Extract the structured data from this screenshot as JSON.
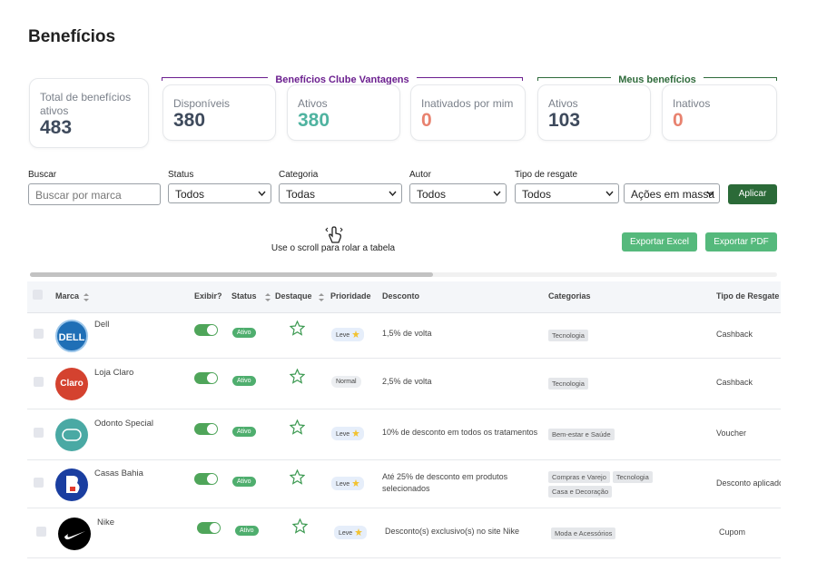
{
  "header": {
    "title": "Benefícios"
  },
  "stats": {
    "total": {
      "label": "Total de benefícios ativos",
      "value": 483
    },
    "groups": [
      {
        "title": "Benefícios Clube Vantagens",
        "cards": [
          {
            "label": "Disponíveis",
            "value": 380
          },
          {
            "label": "Ativos",
            "value": 380
          },
          {
            "label": "Inativados por mim",
            "value": 0
          }
        ]
      },
      {
        "title": "Meus benefícios",
        "cards": [
          {
            "label": "Ativos",
            "value": 103
          },
          {
            "label": "Inativos",
            "value": 0
          }
        ]
      }
    ]
  },
  "filters": [
    {
      "label": "Buscar",
      "placeholder": "Buscar por marca"
    },
    {
      "label": "Status",
      "value": "Todos"
    },
    {
      "label": "Categoria",
      "value": "Todas"
    },
    {
      "label": "Autor",
      "value": "Todos"
    },
    {
      "label": "Tipo de resgate",
      "value": "Todos"
    },
    {
      "value": "Ações em massa"
    }
  ],
  "apply": "Aplicar",
  "scroll_hint": "Use o scroll para rolar a tabela",
  "exports": [
    "Exportar Excel",
    "Exportar PDF"
  ],
  "table": {
    "columns": [
      "Marca",
      "Exibir?",
      "Status",
      "Destaque",
      "Prioridade",
      "Desconto",
      "Categorias",
      "Tipo de Resgate"
    ],
    "rows": [
      {
        "brand": "Dell",
        "logo": "DELL",
        "status": "Ativo",
        "priority": "Leve",
        "discount": "1,5% de volta",
        "categories": [
          "Tecnologia"
        ],
        "redemption": "Cashback"
      },
      {
        "brand": "Loja Claro",
        "logo": "Claro",
        "status": "Ativo",
        "priority": "Normal",
        "discount": "2,5% de volta",
        "categories": [
          "Tecnologia"
        ],
        "redemption": "Cashback"
      },
      {
        "brand": "Odonto Special",
        "status": "Ativo",
        "priority": "Leve",
        "discount": "10% de desconto em todos os tratamentos",
        "categories": [
          "Bem-estar e Saúde"
        ],
        "redemption": "Voucher"
      },
      {
        "brand": "Casas Bahia",
        "status": "Ativo",
        "priority": "Leve",
        "discount": "Até 25% de desconto em produtos selecionados",
        "categories": [
          "Compras e Varejo",
          "Tecnologia",
          "Casa e Decoração"
        ],
        "redemption": "Desconto aplicado"
      },
      {
        "brand": "Nike",
        "status": "Ativo",
        "priority": "Leve",
        "discount": "Desconto(s) exclusivo(s) no site Nike",
        "categories": [
          "Moda e Acessórios"
        ],
        "redemption": "Cupom"
      }
    ]
  }
}
